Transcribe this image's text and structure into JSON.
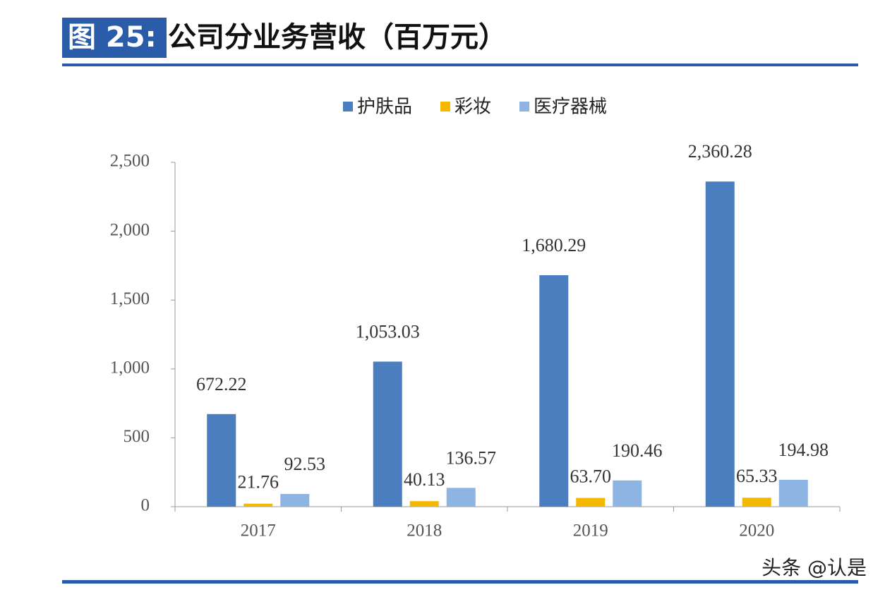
{
  "chart_data": {
    "type": "bar",
    "figure_label": "图 25:",
    "title": "公司分业务营收（百万元）",
    "categories": [
      "2017",
      "2018",
      "2019",
      "2020"
    ],
    "series": [
      {
        "name": "护肤品",
        "color": "#4a7ebf",
        "values": [
          672.22,
          1053.03,
          1680.29,
          2360.28
        ],
        "value_labels": [
          "672.22",
          "1,053.03",
          "1,680.29",
          "2,360.28"
        ]
      },
      {
        "name": "彩妆",
        "color": "#f5b800",
        "values": [
          21.76,
          40.13,
          63.7,
          65.33
        ],
        "value_labels": [
          "21.76",
          "40.13",
          "63.70",
          "65.33"
        ]
      },
      {
        "name": "医疗器械",
        "color": "#8db4e2",
        "values": [
          92.53,
          136.57,
          190.46,
          194.98
        ],
        "value_labels": [
          "92.53",
          "136.57",
          "190.46",
          "194.98"
        ]
      }
    ],
    "ylim": [
      0,
      2500
    ],
    "yticks": [
      0,
      500,
      {
        "value": 1000,
        "label": "1,000"
      },
      {
        "value": 1500,
        "label": "1,500"
      },
      {
        "value": 2000,
        "label": "2,000"
      },
      {
        "value": 2500,
        "label": "2,500"
      }
    ],
    "legend": "top",
    "watermark": "头条 @认是"
  }
}
